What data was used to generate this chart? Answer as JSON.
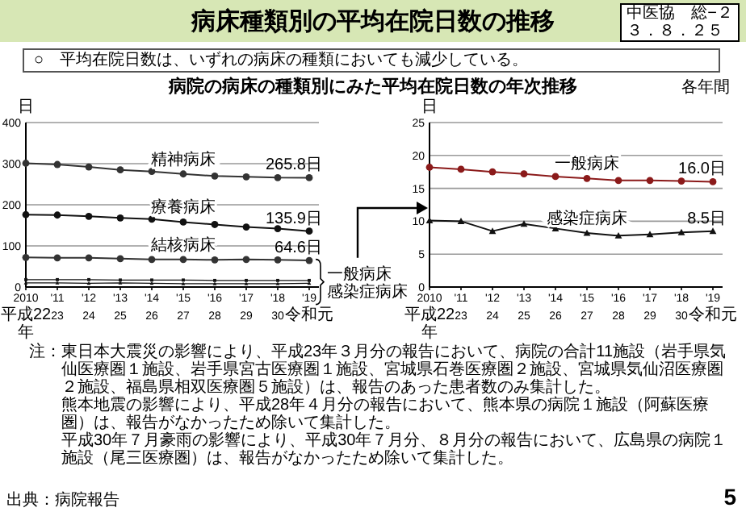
{
  "chart_data": [
    {
      "type": "line",
      "title": "病床種類別の平均在院日数の推移",
      "subtitle": "○　平均在院日数は、いずれの病床の種類においても減少している。",
      "ylabel": "日",
      "categories": [
        "2010\n平成22\n年",
        "'11\n23",
        "'12\n24",
        "'13\n25",
        "'14\n26",
        "'15\n27",
        "'16\n28",
        "'17\n29",
        "'18\n30",
        "'19\n令和元"
      ],
      "ylim": [
        0,
        400
      ],
      "yticks": [
        0,
        100,
        200,
        300,
        400
      ],
      "grid": "y",
      "series": [
        {
          "name": "精神病床",
          "color": "#333333",
          "marker": "circle",
          "values": [
            301,
            298,
            292,
            285,
            281,
            275,
            270,
            268,
            266,
            265.8
          ],
          "value_labels": [
            null,
            null,
            null,
            null,
            null,
            null,
            null,
            null,
            null,
            "265.8日"
          ]
        },
        {
          "name": "療養病床",
          "color": "#111111",
          "marker": "circle",
          "values": [
            176,
            175,
            172,
            168,
            165,
            158,
            152,
            146,
            142,
            135.9
          ],
          "value_labels": [
            null,
            null,
            null,
            null,
            null,
            null,
            null,
            null,
            null,
            "135.9日"
          ]
        },
        {
          "name": "結核病床",
          "color": "#333333",
          "marker": "circle",
          "values": [
            72,
            71,
            71,
            69,
            67,
            67,
            66,
            67,
            66,
            64.6
          ],
          "value_labels": [
            null,
            null,
            null,
            null,
            null,
            null,
            null,
            null,
            null,
            "64.6日"
          ]
        },
        {
          "name": "一般病床",
          "color": "#111111",
          "marker": "square",
          "values": [
            18,
            18,
            18,
            17,
            17,
            17,
            16,
            16,
            16,
            16
          ]
        },
        {
          "name": "感染症病床",
          "color": "#111111",
          "marker": "triangle",
          "values": [
            10,
            10,
            9,
            10,
            9,
            8,
            8,
            8,
            8,
            9
          ]
        }
      ],
      "annotations": [
        "中医協　総−２",
        "３．８．２５",
        "病院の病床の種類別にみた平均在院日数の年次推移",
        "各年間",
        "注：東日本大震災の影響により、平成23年３月分の報告において、病院の合計11施設（岩手県気仙医療圏１施設、岩手県宮古医療圏１施設、宮城県石巻医療圏２施設、宮城県気仙沼医療圏２施設、福島県相双医療圏５施設）は、報告のあった患者数のみ集計した。",
        "熊本地震の影響により、平成28年４月分の報告において、熊本県の病院１施設（阿蘇医療圏）は、報告がなかったため除いて集計した。",
        "平成30年７月豪雨の影響により、平成30年７月分、８月分の報告において、広島県の病院１施設（尾三医療圏）は、報告がなかったため除いて集計した。",
        "出典：病院報告",
        "5"
      ]
    },
    {
      "type": "line",
      "ylabel": "日",
      "categories": [
        "2010\n平成22\n年",
        "'11\n23",
        "'12\n24",
        "'13\n25",
        "'14\n26",
        "'15\n27",
        "'16\n28",
        "'17\n29",
        "'18\n30",
        "'19\n令和元"
      ],
      "ylim": [
        0,
        25
      ],
      "yticks": [
        0,
        5,
        10,
        15,
        20,
        25
      ],
      "grid": "y",
      "series": [
        {
          "name": "一般病床",
          "color": "#8b1a1a",
          "marker": "circle",
          "values": [
            18.2,
            17.9,
            17.5,
            17.2,
            16.8,
            16.5,
            16.2,
            16.2,
            16.1,
            16.0
          ],
          "value_labels": [
            null,
            null,
            null,
            null,
            null,
            null,
            null,
            null,
            null,
            "16.0日"
          ]
        },
        {
          "name": "感染症病床",
          "color": "#111111",
          "marker": "triangle",
          "values": [
            10.1,
            10.0,
            8.5,
            9.6,
            8.9,
            8.2,
            7.8,
            8.0,
            8.3,
            8.5
          ],
          "value_labels": [
            null,
            null,
            null,
            null,
            null,
            null,
            null,
            null,
            null,
            "8.5日"
          ]
        }
      ]
    }
  ]
}
